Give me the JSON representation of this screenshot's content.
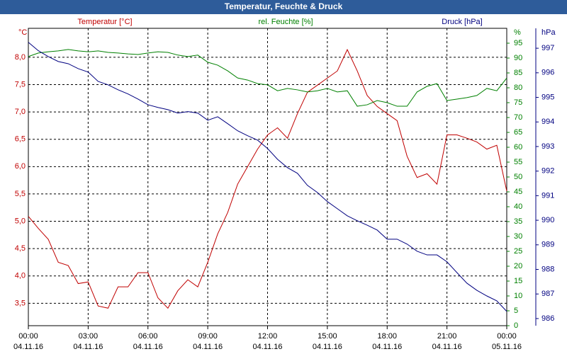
{
  "chart_data": {
    "type": "line",
    "title": "Temperatur, Feuchte & Druck",
    "x": [
      0,
      0.5,
      1,
      1.5,
      2,
      2.5,
      3,
      3.5,
      4,
      4.5,
      5,
      5.5,
      6,
      6.5,
      7,
      7.5,
      8,
      8.5,
      9,
      9.5,
      10,
      10.5,
      11,
      11.5,
      12,
      12.5,
      13,
      13.5,
      14,
      14.5,
      15,
      15.5,
      16,
      16.5,
      17,
      17.5,
      18,
      18.5,
      19,
      19.5,
      20,
      20.5,
      21,
      21.5,
      22,
      22.5,
      23,
      23.5,
      24
    ],
    "xlim": [
      0,
      24
    ],
    "xticks": [
      {
        "value": 0,
        "label": "00:00",
        "sublabel": "04.11.16"
      },
      {
        "value": 3,
        "label": "03:00",
        "sublabel": "04.11.16"
      },
      {
        "value": 6,
        "label": "06:00",
        "sublabel": "04.11.16"
      },
      {
        "value": 9,
        "label": "09:00",
        "sublabel": "04.11.16"
      },
      {
        "value": 12,
        "label": "12:00",
        "sublabel": "04.11.16"
      },
      {
        "value": 15,
        "label": "15:00",
        "sublabel": "04.11.16"
      },
      {
        "value": 18,
        "label": "18:00",
        "sublabel": "04.11.16"
      },
      {
        "value": 21,
        "label": "21:00",
        "sublabel": "04.11.16"
      },
      {
        "value": 24,
        "label": "00:00",
        "sublabel": "05.11.16"
      }
    ],
    "ylabel": "°C",
    "ylim": [
      3.09,
      8.53
    ],
    "yticks": [
      {
        "value": 3.5,
        "label": "3,5"
      },
      {
        "value": 4,
        "label": "4,0"
      },
      {
        "value": 4.5,
        "label": "4,5"
      },
      {
        "value": 5,
        "label": "5,0"
      },
      {
        "value": 5.5,
        "label": "5,5"
      },
      {
        "value": 6,
        "label": "6,0"
      },
      {
        "value": 6.5,
        "label": "6,5"
      },
      {
        "value": 7,
        "label": "7,0"
      },
      {
        "value": 7.5,
        "label": "7,5"
      },
      {
        "value": 8,
        "label": "8,0"
      }
    ],
    "y2label": "%",
    "y2lim": [
      0,
      100
    ],
    "y2ticks": [
      0,
      5,
      10,
      15,
      20,
      25,
      30,
      35,
      40,
      45,
      50,
      55,
      60,
      65,
      70,
      75,
      80,
      85,
      90,
      95
    ],
    "y3label": "hPa",
    "y3lim": [
      985.71,
      997.81
    ],
    "y3ticks": [
      986,
      987,
      988,
      989,
      990,
      991,
      992,
      993,
      994,
      995,
      996,
      997
    ],
    "grid": true,
    "series": [
      {
        "name": "Temperatur [°C]",
        "color": "#c00000",
        "axis": "y",
        "values": [
          5.09,
          4.87,
          4.67,
          4.25,
          4.19,
          3.86,
          3.89,
          3.45,
          3.41,
          3.8,
          3.8,
          4.06,
          4.06,
          3.6,
          3.41,
          3.73,
          3.93,
          3.8,
          4.25,
          4.77,
          5.16,
          5.68,
          6.0,
          6.32,
          6.58,
          6.71,
          6.52,
          6.97,
          7.36,
          7.49,
          7.62,
          7.75,
          8.14,
          7.75,
          7.3,
          7.1,
          6.97,
          6.84,
          6.19,
          5.8,
          5.87,
          5.68,
          6.58,
          6.58,
          6.52,
          6.45,
          6.32,
          6.39,
          5.55
        ]
      },
      {
        "name": "rel. Feuchte [%]",
        "color": "#008000",
        "axis": "y2",
        "values": [
          90.5,
          91.7,
          92.1,
          92.4,
          92.9,
          92.4,
          92.1,
          92.4,
          91.9,
          91.7,
          91.4,
          91.2,
          91.7,
          92.1,
          91.9,
          91,
          90.5,
          91,
          88.6,
          87.6,
          85.7,
          83.3,
          82.6,
          81.4,
          81,
          79,
          79.8,
          79.3,
          78.6,
          79,
          79.8,
          78.6,
          79,
          73.8,
          74.3,
          75.7,
          75,
          73.8,
          73.8,
          78.6,
          80.5,
          81.4,
          75.7,
          76.2,
          76.7,
          77.4,
          79.8,
          79,
          83.3
        ]
      },
      {
        "name": "Druck [hPa]",
        "color": "#000080",
        "axis": "y3",
        "values": [
          997.24,
          996.9,
          996.66,
          996.46,
          996.37,
          996.17,
          996.03,
          995.65,
          995.51,
          995.31,
          995.14,
          994.93,
          994.7,
          994.59,
          994.5,
          994.36,
          994.42,
          994.36,
          994.07,
          994.21,
          993.93,
          993.64,
          993.44,
          993.26,
          992.92,
          992.48,
          992.14,
          991.91,
          991.42,
          991.13,
          990.76,
          990.47,
          990.18,
          989.98,
          989.8,
          989.6,
          989.23,
          989.23,
          989.03,
          988.74,
          988.59,
          988.59,
          988.31,
          987.87,
          987.44,
          987.15,
          986.92,
          986.72,
          986.29
        ]
      }
    ]
  }
}
